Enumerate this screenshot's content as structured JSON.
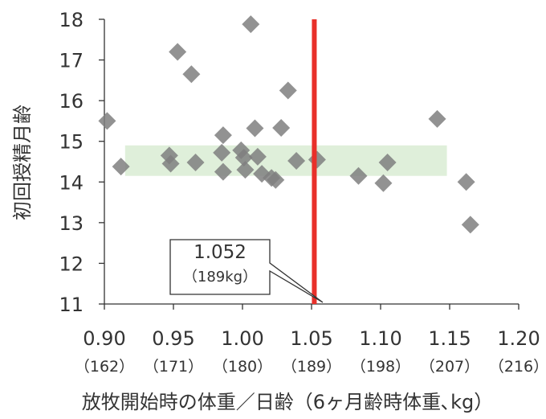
{
  "chart_data": {
    "type": "scatter",
    "xlabel": "放牧開始時の体重／日齢（6ヶ月齢時体重､kg）",
    "ylabel": "初回授精月齢",
    "xlim": [
      0.9,
      1.2
    ],
    "ylim": [
      11,
      18
    ],
    "grid": false,
    "x_ticks": [
      {
        "value": 0.9,
        "label": "0.90",
        "sublabel": "（162）"
      },
      {
        "value": 0.95,
        "label": "0.95",
        "sublabel": "（171）"
      },
      {
        "value": 1.0,
        "label": "1.00",
        "sublabel": "（180）"
      },
      {
        "value": 1.05,
        "label": "1.05",
        "sublabel": "（189）"
      },
      {
        "value": 1.1,
        "label": "1.10",
        "sublabel": "（198）"
      },
      {
        "value": 1.15,
        "label": "1.15",
        "sublabel": "（207）"
      },
      {
        "value": 1.2,
        "label": "1.20",
        "sublabel": "（216）"
      }
    ],
    "y_ticks": [
      11,
      12,
      13,
      14,
      15,
      16,
      17,
      18
    ],
    "points": [
      {
        "x": 0.902,
        "y": 15.5
      },
      {
        "x": 0.912,
        "y": 14.38
      },
      {
        "x": 0.947,
        "y": 14.65
      },
      {
        "x": 0.948,
        "y": 14.45
      },
      {
        "x": 0.953,
        "y": 17.2
      },
      {
        "x": 0.963,
        "y": 16.65
      },
      {
        "x": 0.966,
        "y": 14.48
      },
      {
        "x": 0.986,
        "y": 15.15
      },
      {
        "x": 0.985,
        "y": 14.72
      },
      {
        "x": 0.986,
        "y": 14.25
      },
      {
        "x": 0.999,
        "y": 14.78
      },
      {
        "x": 1.001,
        "y": 14.6
      },
      {
        "x": 1.002,
        "y": 14.3
      },
      {
        "x": 1.006,
        "y": 17.88
      },
      {
        "x": 1.009,
        "y": 15.32
      },
      {
        "x": 1.011,
        "y": 14.62
      },
      {
        "x": 1.014,
        "y": 14.2
      },
      {
        "x": 1.021,
        "y": 14.1
      },
      {
        "x": 1.024,
        "y": 14.05
      },
      {
        "x": 1.028,
        "y": 15.33
      },
      {
        "x": 1.033,
        "y": 16.25
      },
      {
        "x": 1.039,
        "y": 14.52
      },
      {
        "x": 1.054,
        "y": 14.55
      },
      {
        "x": 1.084,
        "y": 14.15
      },
      {
        "x": 1.102,
        "y": 13.97
      },
      {
        "x": 1.105,
        "y": 14.48
      },
      {
        "x": 1.141,
        "y": 15.55
      },
      {
        "x": 1.162,
        "y": 14.0
      },
      {
        "x": 1.165,
        "y": 12.95
      }
    ],
    "band": {
      "y_from": 14.15,
      "y_to": 14.9,
      "color": "#d9ecd3"
    },
    "threshold": {
      "x": 1.052,
      "color": "#e8302a"
    },
    "annotation": {
      "label": "1.052",
      "sublabel": "（189kg）"
    },
    "marker_color": "#7f7f7f"
  }
}
